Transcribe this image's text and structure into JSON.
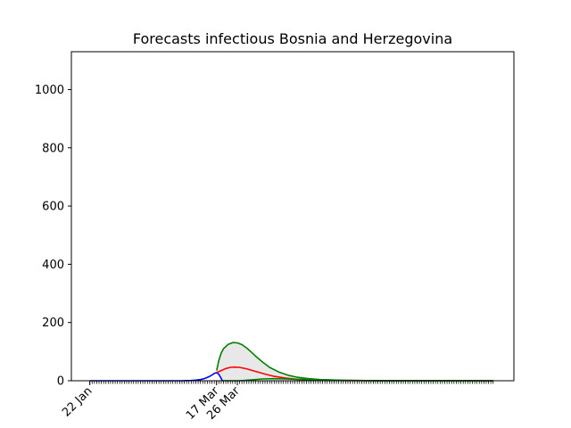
{
  "chart_data": {
    "type": "line",
    "title": "Forecasts infectious Bosnia and Herzegovina",
    "xlabel": "",
    "ylabel": "",
    "x_tick_labels": [
      {
        "label": "22 Jan",
        "day": 0
      },
      {
        "label": "17 Mar",
        "day": 55
      },
      {
        "label": "26 Mar",
        "day": 64
      }
    ],
    "x_range_days": [
      -8,
      184
    ],
    "x_data_range_days": [
      0,
      175
    ],
    "minor_tick_every_days": 1,
    "ylim": [
      0,
      1130
    ],
    "y_ticks": [
      0,
      200,
      400,
      600,
      800,
      1000
    ],
    "grid": false,
    "legend": "none",
    "series": [
      {
        "color": "#0000ff",
        "points": [
          [
            0,
            0
          ],
          [
            20,
            0
          ],
          [
            40,
            0
          ],
          [
            42,
            0.5
          ],
          [
            44,
            1
          ],
          [
            46,
            2
          ],
          [
            48,
            4
          ],
          [
            50,
            8
          ],
          [
            52,
            15
          ],
          [
            53,
            20
          ],
          [
            54,
            25
          ],
          [
            55,
            28
          ],
          [
            56,
            22
          ],
          [
            57,
            8
          ],
          [
            57.5,
            0
          ]
        ]
      },
      {
        "color": "#ff0000",
        "points": [
          [
            55,
            28
          ],
          [
            57,
            35
          ],
          [
            59,
            42
          ],
          [
            61,
            46
          ],
          [
            63,
            47
          ],
          [
            65,
            46
          ],
          [
            68,
            41
          ],
          [
            72,
            32
          ],
          [
            76,
            23
          ],
          [
            80,
            15
          ],
          [
            85,
            9
          ],
          [
            90,
            5
          ],
          [
            100,
            2
          ],
          [
            110,
            0.6
          ],
          [
            125,
            0
          ],
          [
            175,
            0
          ]
        ]
      },
      {
        "color": "#008000",
        "points": [
          [
            55,
            35
          ],
          [
            56,
            70
          ],
          [
            57,
            95
          ],
          [
            58,
            110
          ],
          [
            60,
            125
          ],
          [
            62,
            131
          ],
          [
            64,
            130
          ],
          [
            66,
            124
          ],
          [
            68,
            113
          ],
          [
            70,
            99
          ],
          [
            72,
            84
          ],
          [
            75,
            64
          ],
          [
            78,
            46
          ],
          [
            82,
            30
          ],
          [
            86,
            19
          ],
          [
            90,
            12
          ],
          [
            95,
            7
          ],
          [
            100,
            4
          ],
          [
            110,
            1.5
          ],
          [
            125,
            0.3
          ],
          [
            175,
            0
          ]
        ]
      },
      {
        "color": "#008000",
        "points": [
          [
            57.5,
            0
          ],
          [
            65,
            0
          ],
          [
            70,
            3
          ],
          [
            75,
            6
          ],
          [
            80,
            7
          ],
          [
            85,
            6
          ],
          [
            90,
            5
          ],
          [
            100,
            3
          ],
          [
            110,
            1.5
          ],
          [
            125,
            0.3
          ],
          [
            175,
            0
          ]
        ]
      }
    ],
    "band": {
      "fill": "#e8e8e8",
      "upper_series": 2,
      "lower_series": 3
    }
  }
}
